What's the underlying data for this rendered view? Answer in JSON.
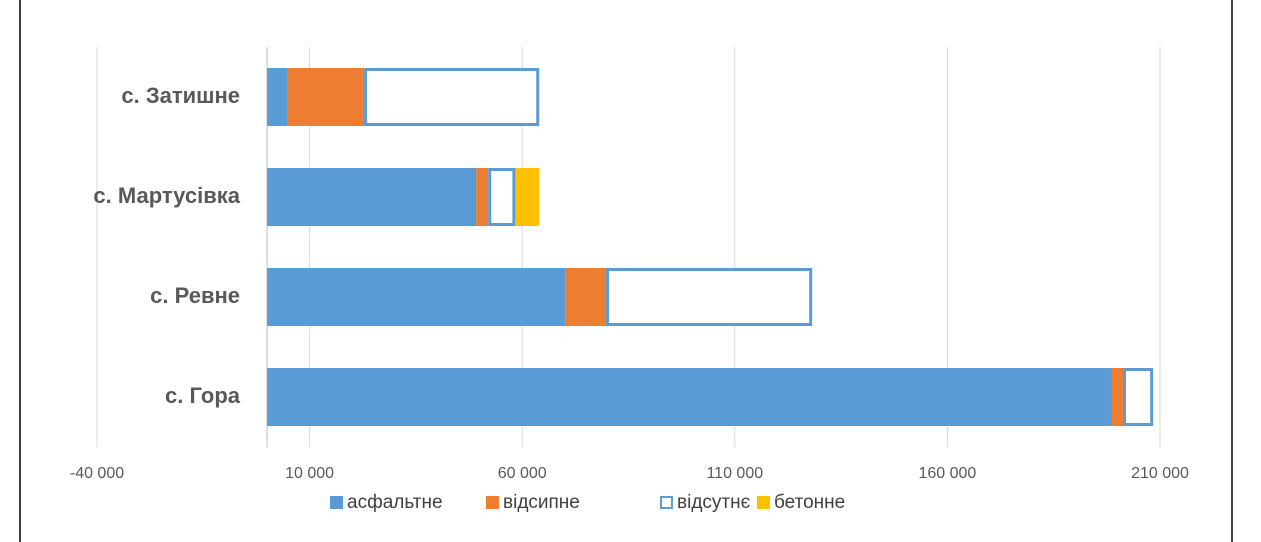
{
  "chart_data": {
    "type": "stacked-barh",
    "categories": [
      "с. Затишне",
      "с. Мартусівка",
      "с. Ревне",
      "с. Гора"
    ],
    "series": [
      {
        "name": "асфальтне",
        "color": "#5b9bd5",
        "values": [
          4700,
          49200,
          70100,
          198700
        ]
      },
      {
        "name": "відсипне",
        "color": "#ed7d31",
        "values": [
          18100,
          2800,
          9600,
          2600
        ]
      },
      {
        "name": "відсутнє",
        "color": "#ffffff",
        "values": [
          41200,
          6400,
          48500,
          7100
        ]
      },
      {
        "name": "бетонне",
        "color": "#ffc000",
        "values": [
          null,
          5600,
          null,
          null
        ]
      }
    ],
    "xlim": [
      -40000,
      210000
    ],
    "xticks": [
      {
        "value": -40000,
        "label": "-40 000"
      },
      {
        "value": 10000,
        "label": "10 000"
      },
      {
        "value": 60000,
        "label": "60 000"
      },
      {
        "value": 110000,
        "label": "110 000"
      },
      {
        "value": 160000,
        "label": "160 000"
      },
      {
        "value": 210000,
        "label": "210 000"
      }
    ],
    "grid": true,
    "legend": "bottom"
  }
}
